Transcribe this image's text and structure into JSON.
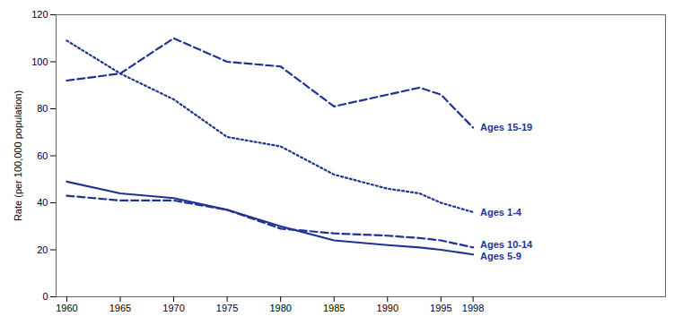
{
  "chart_data": {
    "type": "line",
    "ylabel": "Rate (per 100,000 population)",
    "x": [
      1960,
      1965,
      1970,
      1975,
      1980,
      1985,
      1990,
      1993,
      1995,
      1998
    ],
    "series": [
      {
        "name": "Ages 15-19",
        "color": "#1f3391",
        "line_style": "dashed",
        "values": [
          92,
          95,
          110,
          100,
          98,
          81,
          86,
          89,
          86,
          72
        ]
      },
      {
        "name": "Ages 1-4",
        "color": "#1f3391",
        "line_style": "dotted",
        "values": [
          109,
          95,
          84,
          68,
          64,
          52,
          46,
          44,
          40,
          36
        ]
      },
      {
        "name": "Ages 10-14",
        "color": "#1f3391",
        "line_style": "dashed",
        "values": [
          43,
          41,
          41,
          37,
          29,
          27,
          26,
          25,
          24,
          21
        ]
      },
      {
        "name": "Ages 5-9",
        "color": "#1f3391",
        "line_style": "solid",
        "values": [
          49,
          44,
          42,
          37,
          30,
          24,
          22,
          21,
          20,
          18
        ]
      }
    ],
    "xlim": [
      1959,
      2016
    ],
    "xticks": [
      1960,
      1965,
      1970,
      1975,
      1980,
      1985,
      1990,
      1995,
      1998
    ],
    "ylim": [
      0,
      120
    ],
    "yticks": [
      0,
      20,
      40,
      60,
      80,
      100,
      120
    ],
    "grid": false,
    "legend": false
  }
}
